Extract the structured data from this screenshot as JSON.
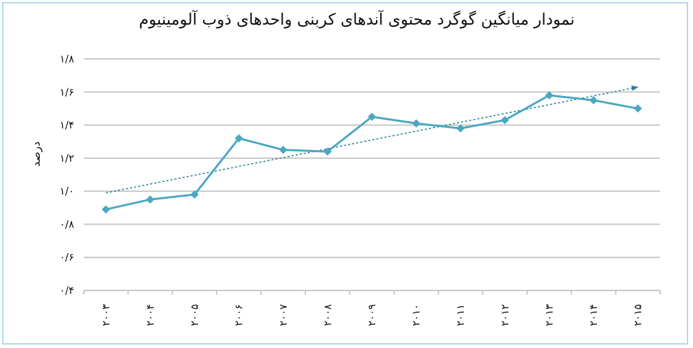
{
  "chart_data": {
    "type": "line",
    "title": "نمودار میانگین گوگرد محتوی آندهای کربنی واحدهای ذوب آلومینیوم",
    "xlabel": "",
    "ylabel": "درصد",
    "ylim": [
      0.4,
      1.8
    ],
    "yticks": [
      0.4,
      0.6,
      0.8,
      1.0,
      1.2,
      1.4,
      1.6,
      1.8
    ],
    "ytick_labels": [
      "۰/۴",
      "۰/۶",
      "۰/۸",
      "۱/۰",
      "۱/۲",
      "۱/۴",
      "۱/۶",
      "۱/۸"
    ],
    "categories": [
      "۲۰۰۳",
      "۲۰۰۴",
      "۲۰۰۵",
      "۲۰۰۶",
      "۲۰۰۷",
      "۲۰۰۸",
      "۲۰۰۹",
      "۲۰۱۰",
      "۲۰۱۱",
      "۲۰۱۲",
      "۲۰۱۳",
      "۲۰۱۴",
      "۲۰۱۵"
    ],
    "series": [
      {
        "values": [
          0.89,
          0.95,
          0.98,
          1.32,
          1.25,
          1.24,
          1.45,
          1.41,
          1.38,
          1.43,
          1.58,
          1.55,
          1.5
        ],
        "color": "#4aa8c0",
        "marker": "diamond"
      }
    ],
    "trendline": {
      "type": "linear",
      "style": "dotted",
      "arrow": true,
      "color": "#2f7f99",
      "start_value": 0.99,
      "end_value": 1.63
    },
    "grid": true,
    "legend": "none"
  }
}
